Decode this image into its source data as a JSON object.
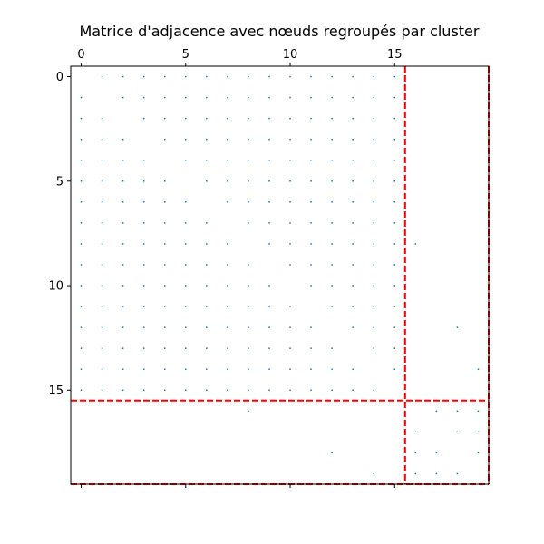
{
  "chart_data": {
    "type": "heatmap",
    "variant": "spy",
    "title": "Matrice d'adjacence avec nœuds regroupés par cluster",
    "xlabel": "",
    "ylabel": "",
    "size": 20,
    "x_ticks": [
      0,
      5,
      10,
      15
    ],
    "y_ticks": [
      0,
      5,
      10,
      15
    ],
    "xlim": [
      -0.5,
      19.5
    ],
    "ylim": [
      19.5,
      -0.5
    ],
    "x_axis_position": "top",
    "grid": false,
    "marker_color": "#1f77b4",
    "cluster_line_color": "#ff0000",
    "cluster_line_style": "dashed",
    "cluster_boundaries": [
      15.5,
      19.5
    ],
    "nonzero_entries": [
      [
        0,
        [
          2,
          3,
          4,
          5,
          6,
          7,
          8,
          9,
          10,
          11,
          12,
          13,
          14,
          15,
          1
        ]
      ],
      [
        1,
        [
          0,
          2,
          3,
          4,
          5,
          6,
          7,
          8,
          9,
          10,
          11,
          12,
          13,
          14,
          15
        ]
      ],
      [
        2,
        [
          0,
          1,
          3,
          4,
          5,
          6,
          7,
          8,
          9,
          10,
          11,
          12,
          13,
          14,
          15
        ]
      ],
      [
        3,
        [
          0,
          1,
          2,
          4,
          5,
          6,
          7,
          8,
          9,
          10,
          11,
          12,
          13,
          14,
          15
        ]
      ],
      [
        4,
        [
          0,
          1,
          2,
          3,
          5,
          6,
          7,
          8,
          9,
          10,
          11,
          12,
          13,
          14,
          15
        ]
      ],
      [
        5,
        [
          0,
          1,
          2,
          3,
          4,
          6,
          7,
          8,
          9,
          10,
          11,
          12,
          13,
          14,
          15
        ]
      ],
      [
        6,
        [
          0,
          1,
          2,
          3,
          4,
          5,
          7,
          8,
          9,
          10,
          11,
          12,
          13,
          14,
          15
        ]
      ],
      [
        7,
        [
          0,
          1,
          2,
          3,
          4,
          5,
          6,
          8,
          9,
          10,
          11,
          12,
          13,
          14,
          15
        ]
      ],
      [
        8,
        [
          0,
          1,
          2,
          3,
          4,
          5,
          6,
          7,
          9,
          10,
          11,
          12,
          13,
          14,
          15,
          16
        ]
      ],
      [
        9,
        [
          0,
          1,
          2,
          3,
          4,
          5,
          6,
          7,
          8,
          10,
          11,
          12,
          13,
          14,
          15
        ]
      ],
      [
        10,
        [
          0,
          1,
          2,
          3,
          4,
          5,
          6,
          7,
          8,
          9,
          11,
          12,
          13,
          14,
          15
        ]
      ],
      [
        11,
        [
          0,
          1,
          2,
          3,
          4,
          5,
          6,
          7,
          8,
          9,
          10,
          12,
          13,
          14,
          15
        ]
      ],
      [
        12,
        [
          0,
          1,
          2,
          3,
          4,
          5,
          6,
          7,
          8,
          9,
          10,
          11,
          13,
          14,
          15,
          18
        ]
      ],
      [
        13,
        [
          0,
          1,
          2,
          3,
          4,
          5,
          6,
          7,
          8,
          9,
          10,
          11,
          12,
          14,
          15
        ]
      ],
      [
        14,
        [
          0,
          1,
          2,
          3,
          4,
          5,
          6,
          7,
          8,
          9,
          10,
          11,
          12,
          13,
          15,
          19
        ]
      ],
      [
        15,
        [
          0,
          1,
          2,
          3,
          4,
          5,
          6,
          7,
          8,
          9,
          10,
          11,
          12,
          13,
          14
        ]
      ],
      [
        16,
        [
          8,
          17,
          18,
          19
        ]
      ],
      [
        17,
        [
          16,
          18,
          19
        ]
      ],
      [
        18,
        [
          12,
          16,
          17,
          19
        ]
      ],
      [
        19,
        [
          14,
          16,
          17,
          18
        ]
      ]
    ]
  }
}
